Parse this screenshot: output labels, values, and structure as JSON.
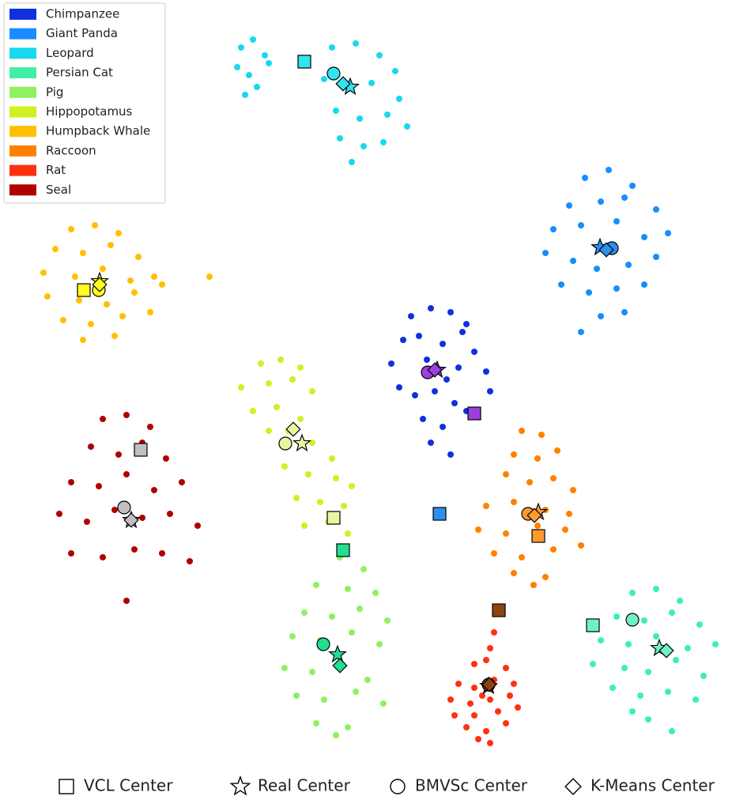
{
  "chart_data": {
    "type": "scatter",
    "center_types": [
      {
        "name": "VCL Center",
        "marker": "square"
      },
      {
        "name": "Real Center",
        "marker": "star"
      },
      {
        "name": "BMVSc Center",
        "marker": "circle"
      },
      {
        "name": "K-Means Center",
        "marker": "diamond"
      }
    ],
    "series": [
      {
        "name": "Chimpanzee",
        "color": "#1030e0",
        "center_color": "#9a40e0",
        "x": [
          520,
          545,
          570,
          590,
          510,
          530,
          560,
          585,
          600,
          495,
          540,
          565,
          580,
          615,
          525,
          550,
          575,
          505,
          535,
          560,
          590,
          620,
          545,
          570
        ],
        "y": [
          400,
          390,
          395,
          410,
          430,
          425,
          435,
          420,
          445,
          460,
          455,
          480,
          465,
          470,
          500,
          495,
          510,
          490,
          530,
          540,
          520,
          495,
          560,
          575
        ],
        "centers": [
          [
            600,
            523
          ],
          [
            553,
            468
          ],
          [
            541,
            471
          ],
          [
            550,
            468
          ]
        ]
      },
      {
        "name": "Giant Panda",
        "color": "#1a8cff",
        "center_color": "#2f8ff0",
        "x": [
          740,
          770,
          800,
          720,
          760,
          790,
          830,
          700,
          735,
          780,
          815,
          845,
          690,
          725,
          755,
          795,
          830,
          710,
          745,
          780,
          815,
          760,
          790,
          735
        ],
        "y": [
          225,
          215,
          235,
          260,
          255,
          250,
          265,
          290,
          285,
          280,
          300,
          295,
          320,
          330,
          340,
          335,
          325,
          360,
          370,
          365,
          360,
          400,
          395,
          420
        ],
        "centers": [
          [
            556,
            650
          ],
          [
            759,
            313
          ],
          [
            774,
            314
          ],
          [
            767,
            316
          ]
        ]
      },
      {
        "name": "Leopard",
        "color": "#18d8f0",
        "center_color": "#30e4f0",
        "x": [
          305,
          320,
          335,
          300,
          315,
          340,
          325,
          310,
          420,
          450,
          480,
          500,
          410,
          440,
          470,
          505,
          425,
          455,
          490,
          515,
          430,
          460,
          485,
          445
        ],
        "y": [
          60,
          50,
          70,
          85,
          95,
          80,
          110,
          120,
          60,
          55,
          70,
          90,
          100,
          110,
          105,
          125,
          140,
          150,
          145,
          160,
          175,
          185,
          180,
          205
        ],
        "centers": [
          [
            385,
            78
          ],
          [
            443,
            110
          ],
          [
            422,
            93
          ],
          [
            434,
            106
          ]
        ]
      },
      {
        "name": "Persian Cat",
        "color": "#40f0a8",
        "center_color": "#70f0c8",
        "x": [
          800,
          830,
          860,
          780,
          815,
          850,
          885,
          760,
          795,
          830,
          870,
          905,
          750,
          790,
          820,
          855,
          890,
          775,
          810,
          845,
          880,
          820,
          850,
          800
        ],
        "y": [
          750,
          745,
          760,
          780,
          785,
          775,
          790,
          810,
          815,
          805,
          820,
          815,
          840,
          845,
          850,
          835,
          855,
          870,
          880,
          875,
          885,
          910,
          925,
          900
        ],
        "centers": [
          [
            750,
            791
          ],
          [
            834,
            820
          ],
          [
            800,
            784
          ],
          [
            843,
            823
          ]
        ]
      },
      {
        "name": "Pig",
        "color": "#90f060",
        "center_color": "#20e090",
        "x": [
          430,
          460,
          400,
          440,
          475,
          385,
          420,
          455,
          490,
          370,
          405,
          445,
          480,
          360,
          395,
          430,
          465,
          375,
          410,
          450,
          485,
          400,
          440,
          425
        ],
        "y": [
          705,
          720,
          740,
          745,
          750,
          775,
          780,
          770,
          785,
          805,
          810,
          800,
          815,
          845,
          850,
          840,
          860,
          880,
          885,
          875,
          890,
          915,
          920,
          930
        ],
        "centers": [
          [
            434,
            696
          ],
          [
            427,
            828
          ],
          [
            409,
            815
          ],
          [
            430,
            842
          ]
        ]
      },
      {
        "name": "Hippopotamus",
        "color": "#d0f020",
        "center_color": "#e4f8a0",
        "x": [
          330,
          355,
          380,
          305,
          340,
          370,
          395,
          320,
          350,
          380,
          340,
          365,
          395,
          420,
          360,
          390,
          425,
          445,
          375,
          405,
          435,
          385,
          415,
          440
        ],
        "y": [
          460,
          455,
          465,
          490,
          485,
          480,
          495,
          520,
          515,
          530,
          545,
          545,
          560,
          580,
          590,
          600,
          605,
          615,
          630,
          635,
          640,
          665,
          660,
          675
        ],
        "centers": [
          [
            422,
            655
          ],
          [
            382,
            561
          ],
          [
            361,
            561
          ],
          [
            371,
            543
          ]
        ]
      },
      {
        "name": "Humpback Whale",
        "color": "#ffc000",
        "center_color": "#ffff20",
        "x": [
          90,
          120,
          150,
          70,
          105,
          140,
          175,
          55,
          95,
          130,
          165,
          195,
          60,
          100,
          135,
          170,
          205,
          80,
          115,
          155,
          190,
          105,
          145,
          265
        ],
        "y": [
          290,
          285,
          295,
          315,
          320,
          310,
          325,
          345,
          350,
          340,
          355,
          350,
          375,
          380,
          385,
          370,
          360,
          405,
          410,
          400,
          395,
          430,
          425,
          350
        ],
        "centers": [
          [
            106,
            367
          ],
          [
            126,
            356
          ],
          [
            125,
            367
          ],
          [
            126,
            360
          ]
        ]
      },
      {
        "name": "Raccoon",
        "color": "#ff8000",
        "center_color": "#ff9a30",
        "x": [
          660,
          685,
          650,
          680,
          705,
          640,
          670,
          700,
          725,
          615,
          650,
          690,
          720,
          605,
          640,
          680,
          715,
          625,
          660,
          700,
          735,
          650,
          690,
          675
        ],
        "y": [
          545,
          550,
          575,
          580,
          570,
          600,
          610,
          605,
          620,
          640,
          635,
          645,
          650,
          670,
          675,
          665,
          670,
          700,
          705,
          695,
          690,
          725,
          730,
          740
        ],
        "centers": [
          [
            681,
            678
          ],
          [
            681,
            648
          ],
          [
            668,
            650
          ],
          [
            676,
            652
          ]
        ]
      },
      {
        "name": "Rat",
        "color": "#ff3010",
        "center_color": "#8b4513",
        "x": [
          630,
          625,
          620,
          600,
          615,
          640,
          580,
          600,
          625,
          650,
          570,
          595,
          620,
          645,
          575,
          600,
          630,
          655,
          590,
          615,
          640,
          605,
          620,
          610
        ],
        "y": [
          775,
          800,
          820,
          840,
          835,
          845,
          865,
          870,
          860,
          865,
          885,
          890,
          885,
          880,
          905,
          905,
          900,
          895,
          920,
          925,
          915,
          935,
          940,
          880
        ],
        "centers": [
          [
            631,
            772
          ],
          [
            618,
            868
          ],
          [
            618,
            866
          ],
          [
            619,
            866
          ]
        ]
      },
      {
        "name": "Seal",
        "color": "#b00000",
        "center_color": "#c0c0c0",
        "x": [
          130,
          160,
          190,
          115,
          150,
          180,
          210,
          90,
          125,
          160,
          195,
          230,
          75,
          110,
          145,
          180,
          215,
          250,
          90,
          130,
          170,
          205,
          240,
          160
        ],
        "y": [
          530,
          525,
          540,
          565,
          575,
          560,
          580,
          610,
          615,
          600,
          620,
          610,
          650,
          660,
          645,
          655,
          650,
          665,
          700,
          705,
          695,
          700,
          710,
          760
        ],
        "centers": [
          [
            178,
            569
          ],
          [
            166,
            658
          ],
          [
            157,
            642
          ],
          [
            166,
            658
          ]
        ]
      }
    ]
  }
}
